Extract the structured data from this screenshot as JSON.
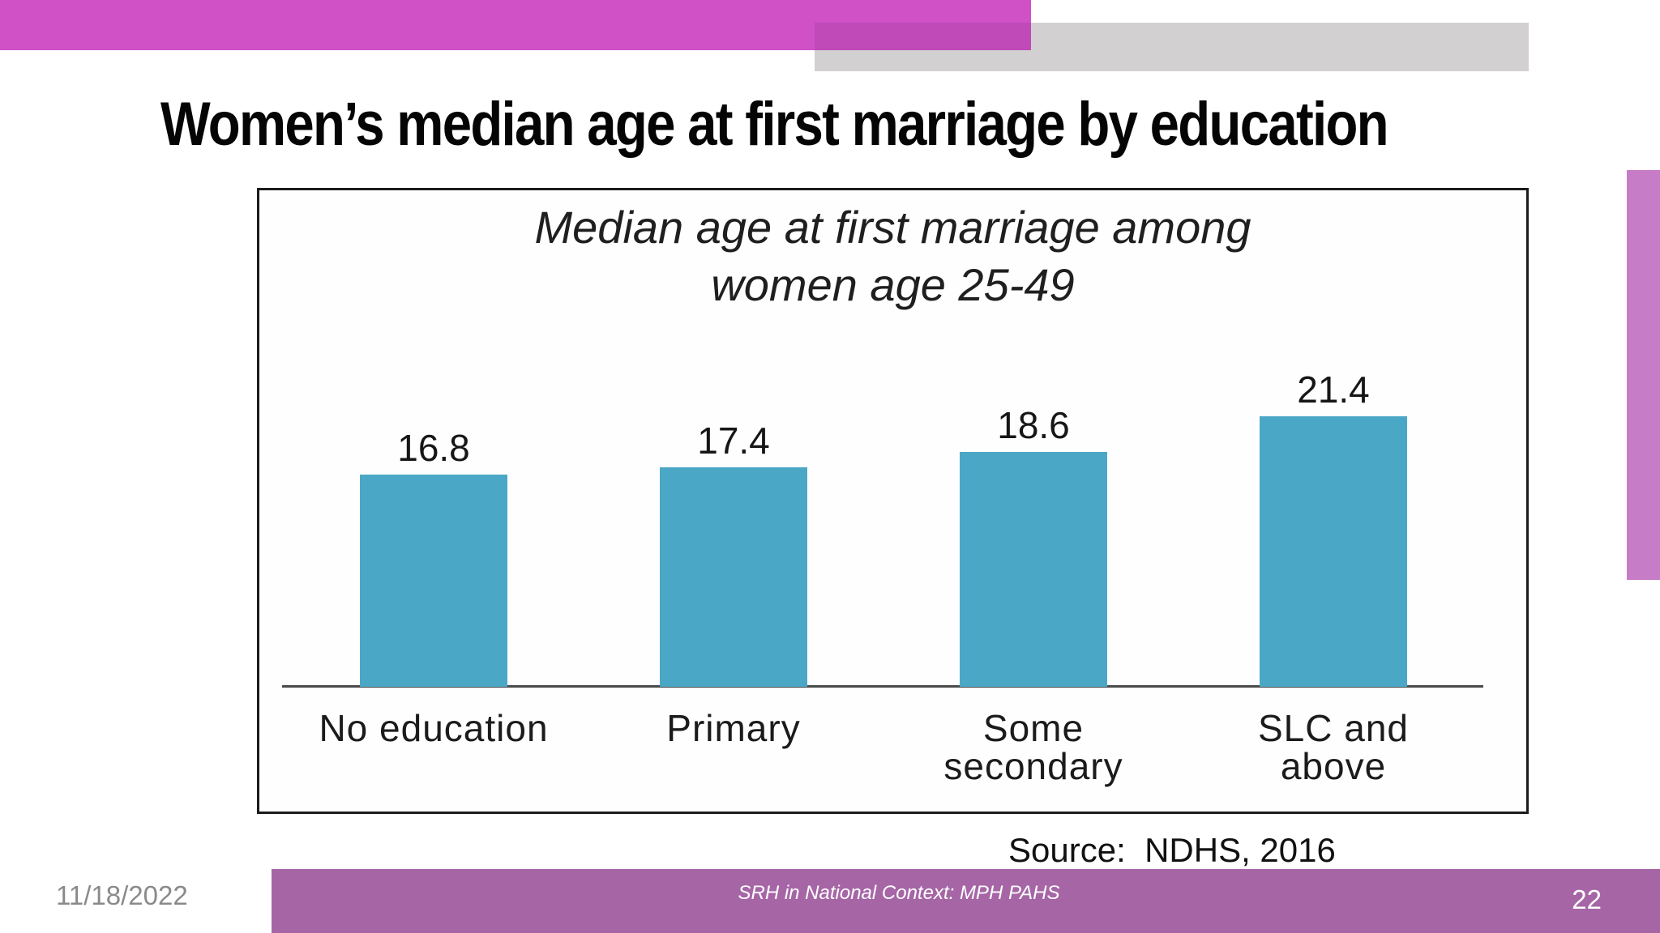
{
  "slide": {
    "title": "Women’s median age at first marriage by education",
    "date": "11/18/2022",
    "footer": "SRH in National Context: MPH PAHS",
    "page_number": "22",
    "source_label": "Source:  NDHS, 2016"
  },
  "chart_data": {
    "type": "bar",
    "title": "Median age at first marriage among women age 25-49",
    "title_lines": [
      "Median age at first marriage among",
      "women age 25-49"
    ],
    "categories": [
      "No education",
      "Primary",
      "Some secondary",
      "SLC and above"
    ],
    "category_lines": [
      "No education",
      "Primary",
      "Some\nsecondary",
      "SLC and\nabove"
    ],
    "values": [
      16.8,
      17.4,
      18.6,
      21.4
    ],
    "value_labels": [
      "16.8",
      "17.4",
      "18.6",
      "21.4"
    ],
    "ylabel": "",
    "xlabel": "",
    "ylim": [
      0,
      25
    ],
    "grid": false,
    "legend": false,
    "bar_color": "#4aa8c6",
    "source": "NDHS, 2016"
  },
  "colors": {
    "top_bar_pink": "#cf51c5",
    "top_bar_overlap": "#c04ab8",
    "top_bar_gray": "#d2d0d0",
    "right_accent": "#c77cc7",
    "footer_purple": "#a666a6",
    "bar_teal": "#4aa8c6",
    "date_gray": "#8a8a8a"
  }
}
